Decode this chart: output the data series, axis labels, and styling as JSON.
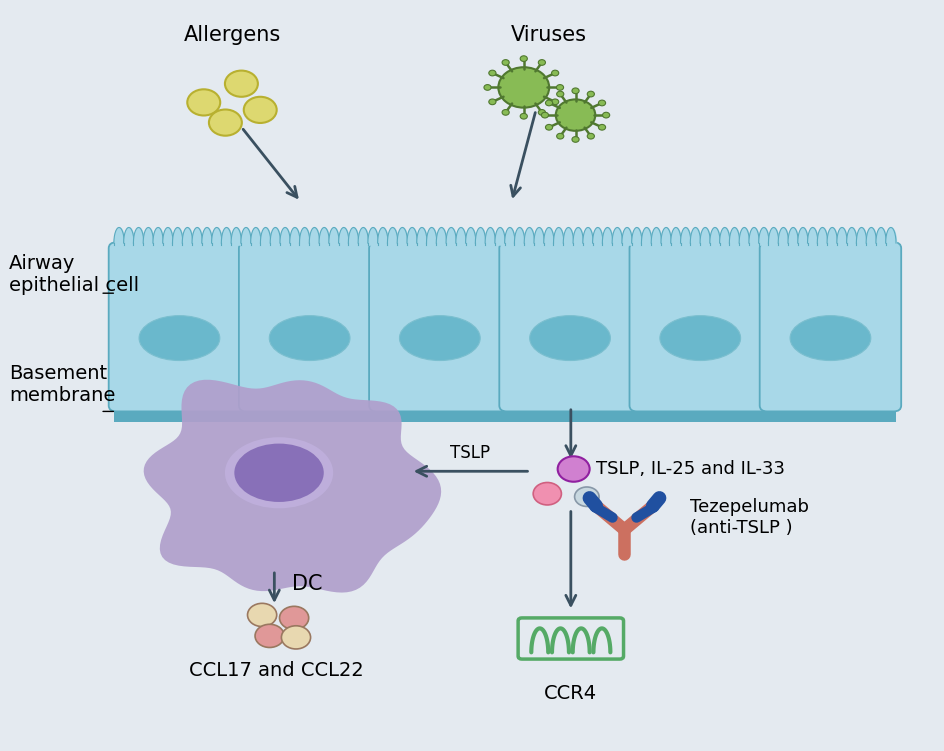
{
  "bg_color": "#e4eaf0",
  "epithelial_cell_color": "#a8d8e8",
  "epithelial_cell_dark": "#7bbfcf",
  "epithelial_cell_border": "#5aaabf",
  "nucleus_color": "#6ab8cc",
  "basement_membrane_color": "#5aaabf",
  "dc_body_color": "#b09fcc",
  "dc_nucleus_color": "#8870b8",
  "arrow_color": "#3a5060",
  "allergen_color": "#ddd870",
  "allergen_border": "#b8b030",
  "virus_color": "#88bb55",
  "virus_border": "#507830",
  "tslp_dot_color": "#d080d0",
  "il25_dot_color": "#f090b0",
  "il33_dot_color": "#c8d8e0",
  "antibody_stem_color": "#cc7060",
  "antibody_arm_color": "#2050a0",
  "ccl_dot1_color": "#e8d8b0",
  "ccl_dot2_color": "#e09898",
  "ccr4_color": "#55aa66",
  "labels": {
    "allergens": "Allergens",
    "viruses": "Viruses",
    "airway": "Airway\nepithelial cell",
    "basement": "Basement\nmembrane",
    "tslp_label": "TSLP",
    "tslp_il": "TSLP, IL-25 and IL-33",
    "dc": "DC",
    "tezepelumab": "Tezepelumab\n(anti-TSLP )",
    "ccl": "CCL17 and CCL22",
    "ccr4": "CCR4"
  },
  "fontsize": 14,
  "small_fontsize": 13
}
